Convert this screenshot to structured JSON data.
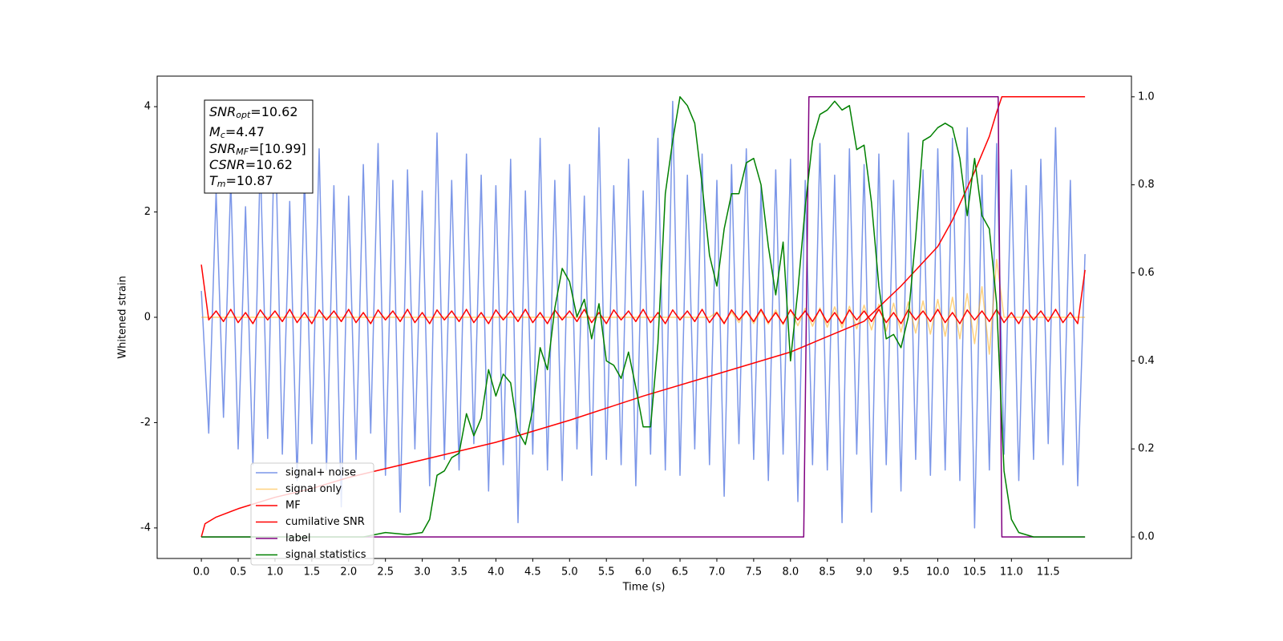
{
  "chart_data": {
    "type": "line",
    "xlabel": "Time (s)",
    "ylabel": "Whitened strain",
    "xlim": [
      -0.6,
      12.63
    ],
    "ylim": [
      -4.58,
      4.58
    ],
    "y2lim": [
      -0.049,
      1.047
    ],
    "xticks": [
      {
        "value": 0,
        "label": "0.0"
      },
      0.5,
      {
        "value": 1,
        "label": "1.0"
      },
      1.5,
      {
        "value": 2,
        "label": "2.0"
      },
      2.5,
      {
        "value": 3,
        "label": "3.0"
      },
      3.5,
      {
        "value": 4,
        "label": "4.0"
      },
      4.5,
      {
        "value": 5,
        "label": "5.0"
      },
      5.5,
      {
        "value": 6,
        "label": "6.0"
      },
      6.5,
      {
        "value": 7,
        "label": "7.0"
      },
      7.5,
      {
        "value": 8,
        "label": "8.0"
      },
      8.5,
      {
        "value": 9,
        "label": "9.0"
      },
      9.5,
      {
        "value": 10,
        "label": "10.0"
      },
      10.5,
      {
        "value": 11,
        "label": "11.0"
      },
      11.5
    ],
    "yticks": [
      -4,
      -2,
      0,
      2,
      4
    ],
    "y2ticks": [
      {
        "value": 0,
        "label": "0.0"
      },
      0.2,
      0.4,
      0.6,
      0.8,
      {
        "value": 1,
        "label": "1.0"
      }
    ],
    "legend": "lower left",
    "annotation": [
      {
        "main": "SNR",
        "sub": "opt",
        "rest": "=10.62"
      },
      {
        "main": "M",
        "sub": "c",
        "rest": "=4.47"
      },
      {
        "main": "SNR",
        "sub": "MF",
        "rest": "=[10.99]"
      },
      {
        "main": "CSNR",
        "rest": "=10.62"
      },
      {
        "main": "T",
        "sub": "m",
        "rest": "=10.87"
      }
    ],
    "x": [
      0,
      0.1,
      0.2,
      0.3,
      0.4,
      0.5,
      0.6,
      0.7,
      0.8,
      0.9,
      1,
      1.1,
      1.2,
      1.3,
      1.4,
      1.5,
      1.6,
      1.7,
      1.8,
      1.9,
      2,
      2.1,
      2.2,
      2.3,
      2.4,
      2.5,
      2.6,
      2.7,
      2.8,
      2.9,
      3,
      3.1,
      3.2,
      3.3,
      3.4,
      3.5,
      3.6,
      3.7,
      3.8,
      3.9,
      4,
      4.1,
      4.2,
      4.3,
      4.4,
      4.5,
      4.6,
      4.7,
      4.8,
      4.9,
      5,
      5.1,
      5.2,
      5.3,
      5.4,
      5.5,
      5.6,
      5.7,
      5.8,
      5.9,
      6,
      6.1,
      6.2,
      6.3,
      6.4,
      6.5,
      6.6,
      6.7,
      6.8,
      6.9,
      7,
      7.1,
      7.2,
      7.3,
      7.4,
      7.5,
      7.6,
      7.7,
      7.8,
      7.9,
      8,
      8.1,
      8.2,
      8.3,
      8.4,
      8.5,
      8.6,
      8.7,
      8.8,
      8.9,
      9,
      9.1,
      9.2,
      9.3,
      9.4,
      9.5,
      9.6,
      9.7,
      9.8,
      9.9,
      10,
      10.1,
      10.2,
      10.3,
      10.4,
      10.5,
      10.6,
      10.7,
      10.8,
      10.9,
      11,
      11.1,
      11.2,
      11.3,
      11.4,
      11.5,
      11.6,
      11.7,
      11.8,
      11.9,
      12
    ],
    "series": [
      {
        "name": "signal+ noise",
        "color": "#7b96e8",
        "values": [
          0.5,
          -2.2,
          2.4,
          -1.9,
          2.6,
          -2.5,
          2.1,
          -2.8,
          3.0,
          -2.3,
          3.9,
          -2.6,
          2.2,
          -3.1,
          2.7,
          -2.4,
          3.2,
          -2.9,
          2.5,
          -3.6,
          2.3,
          -2.7,
          2.9,
          -2.2,
          3.3,
          -3.0,
          2.6,
          -3.7,
          2.8,
          -2.5,
          2.4,
          -3.2,
          3.5,
          -2.7,
          2.6,
          -2.9,
          3.1,
          -2.4,
          2.7,
          -3.3,
          2.5,
          -2.8,
          3.0,
          -3.9,
          2.4,
          -2.6,
          3.4,
          -2.9,
          2.6,
          -3.1,
          2.9,
          -2.5,
          2.3,
          -3.0,
          3.6,
          -2.7,
          2.5,
          -2.8,
          3.0,
          -3.2,
          2.4,
          -2.6,
          3.4,
          -2.9,
          4.1,
          -3.0,
          2.7,
          -2.5,
          3.1,
          -2.8,
          2.6,
          -3.4,
          2.9,
          -2.4,
          3.2,
          -2.7,
          2.5,
          -3.1,
          2.8,
          -2.6,
          3.0,
          -3.5,
          2.6,
          -2.8,
          3.3,
          -2.9,
          2.7,
          -3.9,
          3.2,
          -2.6,
          2.9,
          -3.7,
          3.1,
          -2.8,
          2.6,
          -3.3,
          3.5,
          -2.7,
          2.8,
          -3.0,
          3.2,
          -2.9,
          3.4,
          -3.1,
          3.6,
          -4.0,
          2.7,
          -2.9,
          3.3,
          -2.6,
          2.8,
          -3.1,
          2.5,
          -2.7,
          3.0,
          -2.4,
          3.6,
          -2.8,
          2.6,
          -3.2,
          1.2
        ]
      },
      {
        "name": "signal only",
        "color": "#ffa500",
        "values": [
          0,
          0,
          0,
          0,
          0,
          0,
          0,
          0,
          0,
          0,
          0,
          0,
          0,
          0,
          0,
          0,
          0,
          0,
          0,
          0,
          0,
          0,
          0,
          0,
          0,
          0,
          0,
          0,
          0,
          0,
          0,
          0,
          0,
          0,
          0,
          0,
          0,
          0,
          0,
          0,
          0,
          0,
          0,
          0,
          0,
          0,
          0,
          0,
          0,
          0,
          0,
          0,
          0,
          0,
          0,
          0,
          0,
          0,
          0,
          0,
          0,
          0,
          0,
          0,
          0,
          0,
          0,
          0,
          0,
          0,
          0.1,
          -0.1,
          0.1,
          -0.1,
          0.12,
          -0.12,
          0.13,
          -0.13,
          0.14,
          -0.14,
          0.15,
          -0.16,
          0.17,
          -0.17,
          0.18,
          -0.19,
          0.2,
          -0.2,
          0.21,
          -0.22,
          0.23,
          -0.24,
          0.25,
          -0.26,
          0.27,
          -0.28,
          0.29,
          -0.3,
          0.31,
          -0.32,
          0.34,
          -0.36,
          0.38,
          -0.41,
          0.45,
          -0.5,
          0.58,
          -0.7,
          1.1,
          0,
          0,
          0,
          0,
          0,
          0,
          0,
          0,
          0,
          0,
          0,
          0
        ]
      },
      {
        "name": "MF",
        "color": "#ff0000",
        "values": [
          1.0,
          -0.05,
          0.12,
          -0.08,
          0.15,
          -0.1,
          0.09,
          -0.12,
          0.14,
          -0.05,
          0.12,
          -0.08,
          0.15,
          -0.1,
          0.09,
          -0.12,
          0.14,
          -0.05,
          0.12,
          -0.08,
          0.15,
          -0.1,
          0.09,
          -0.12,
          0.14,
          -0.05,
          0.12,
          -0.08,
          0.15,
          -0.1,
          0.09,
          -0.12,
          0.14,
          -0.05,
          0.12,
          -0.08,
          0.15,
          -0.1,
          0.09,
          -0.12,
          0.14,
          -0.05,
          0.12,
          -0.08,
          0.15,
          -0.1,
          0.09,
          -0.12,
          0.14,
          -0.05,
          0.12,
          -0.08,
          0.15,
          -0.1,
          0.09,
          -0.12,
          0.14,
          -0.05,
          0.12,
          -0.08,
          0.15,
          -0.1,
          0.09,
          -0.12,
          0.14,
          -0.05,
          0.12,
          -0.08,
          0.15,
          -0.1,
          0.09,
          -0.12,
          0.14,
          -0.05,
          0.12,
          -0.08,
          0.15,
          -0.1,
          0.09,
          -0.12,
          0.14,
          -0.05,
          0.12,
          -0.08,
          0.15,
          -0.1,
          0.09,
          -0.12,
          0.14,
          -0.05,
          0.12,
          -0.08,
          0.15,
          -0.1,
          0.09,
          -0.12,
          0.14,
          -0.05,
          0.12,
          -0.08,
          0.15,
          -0.1,
          0.09,
          -0.12,
          0.14,
          -0.05,
          0.12,
          -0.08,
          0.15,
          -0.1,
          0.09,
          -0.12,
          0.14,
          -0.05,
          0.12,
          -0.08,
          0.15,
          -0.1,
          0.09,
          -0.12,
          0.9
        ]
      },
      {
        "name": "cumilative SNR",
        "color": "#ff0000",
        "axis": "y2",
        "x": [
          0,
          0.05,
          0.2,
          0.5,
          1,
          1.5,
          2,
          2.5,
          3,
          4,
          5,
          6,
          7,
          8,
          9,
          9.5,
          10,
          10.2,
          10.5,
          10.7,
          10.8,
          10.87,
          12
        ],
        "values": [
          0.0,
          0.03,
          0.045,
          0.064,
          0.09,
          0.11,
          0.135,
          0.155,
          0.175,
          0.215,
          0.265,
          0.32,
          0.37,
          0.42,
          0.49,
          0.57,
          0.66,
          0.72,
          0.83,
          0.91,
          0.965,
          1.0,
          1.0
        ]
      },
      {
        "name": "label",
        "color": "#800080",
        "axis": "y2",
        "x": [
          0,
          8.18,
          8.25,
          10.82,
          10.87,
          12
        ],
        "values": [
          0,
          0,
          1,
          1,
          0,
          0
        ]
      },
      {
        "name": "signal statistics",
        "color": "#008000",
        "axis": "y2",
        "x": [
          0,
          2.2,
          2.5,
          2.8,
          3.0,
          3.1,
          3.2,
          3.3,
          3.4,
          3.5,
          3.6,
          3.7,
          3.8,
          3.9,
          4.0,
          4.1,
          4.2,
          4.3,
          4.4,
          4.5,
          4.6,
          4.7,
          4.8,
          4.9,
          5.0,
          5.1,
          5.2,
          5.3,
          5.4,
          5.5,
          5.6,
          5.7,
          5.8,
          5.9,
          6.0,
          6.1,
          6.2,
          6.3,
          6.4,
          6.5,
          6.6,
          6.7,
          6.8,
          6.9,
          7.0,
          7.1,
          7.2,
          7.3,
          7.4,
          7.5,
          7.6,
          7.7,
          7.8,
          7.9,
          8.0,
          8.1,
          8.2,
          8.3,
          8.4,
          8.5,
          8.6,
          8.7,
          8.8,
          8.9,
          9.0,
          9.1,
          9.2,
          9.3,
          9.4,
          9.5,
          9.6,
          9.7,
          9.8,
          9.9,
          10.0,
          10.1,
          10.2,
          10.3,
          10.4,
          10.5,
          10.6,
          10.7,
          10.8,
          10.9,
          11.0,
          11.1,
          11.3,
          12.0
        ],
        "values": [
          0,
          0,
          0.01,
          0.005,
          0.01,
          0.04,
          0.14,
          0.15,
          0.18,
          0.19,
          0.28,
          0.23,
          0.27,
          0.38,
          0.32,
          0.37,
          0.35,
          0.24,
          0.21,
          0.29,
          0.43,
          0.38,
          0.52,
          0.61,
          0.58,
          0.5,
          0.54,
          0.45,
          0.53,
          0.4,
          0.39,
          0.36,
          0.42,
          0.34,
          0.25,
          0.25,
          0.44,
          0.78,
          0.9,
          1.0,
          0.98,
          0.94,
          0.8,
          0.64,
          0.57,
          0.7,
          0.78,
          0.78,
          0.85,
          0.86,
          0.8,
          0.66,
          0.55,
          0.67,
          0.4,
          0.56,
          0.75,
          0.9,
          0.96,
          0.97,
          0.99,
          0.97,
          0.98,
          0.88,
          0.89,
          0.76,
          0.57,
          0.45,
          0.46,
          0.43,
          0.5,
          0.68,
          0.9,
          0.91,
          0.93,
          0.94,
          0.93,
          0.86,
          0.73,
          0.86,
          0.73,
          0.7,
          0.53,
          0.15,
          0.04,
          0.01,
          0,
          0
        ]
      }
    ]
  }
}
